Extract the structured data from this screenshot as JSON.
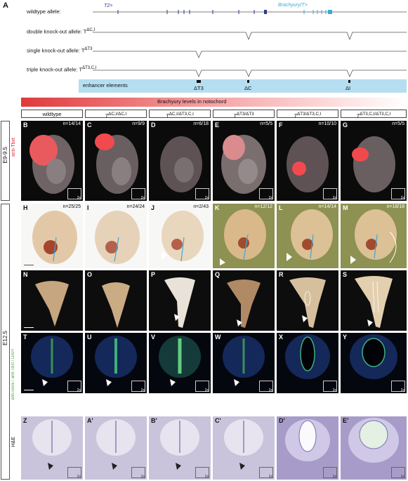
{
  "panel_a": {
    "label": "A",
    "gene_t2": "T2>",
    "gene_brachyury": "Brachyury/T>",
    "alleles": [
      {
        "prefix": "wildtype allele:",
        "sup": ""
      },
      {
        "prefix": "double knock-out allele: T",
        "sup": "ΔC,I"
      },
      {
        "prefix": "single knock-out allele: T",
        "sup": "ΔT3"
      },
      {
        "prefix": "triple knock-out allele: T",
        "sup": "ΔT3,C,I"
      }
    ],
    "enhancer_label": "enhancer elements",
    "enhancers": [
      "ΔT3",
      "ΔC",
      "ΔI"
    ]
  },
  "gradient_label": "Brachyury levels in notochord",
  "genotypes": [
    {
      "text": "wildtype",
      "prefix": ""
    },
    {
      "prefix": "T",
      "sup": "ΔC,I/ΔC,I"
    },
    {
      "prefix": "T",
      "sup": "ΔC,I/ΔT3,C,I"
    },
    {
      "prefix": "T",
      "sup": "ΔT3/ΔT3"
    },
    {
      "prefix": "T",
      "sup": "ΔT3/ΔT3,C,I"
    },
    {
      "prefix": "T",
      "sup": "ΔT3,C,I/ΔT3,C,I"
    }
  ],
  "stages": {
    "e9": "E9-9.5",
    "e12": "E12.5"
  },
  "side_labels": {
    "row1": "anti-Tbxt",
    "row4": "anti-Sox9 / anti-Tbxt / DAPI",
    "row5": "H&E"
  },
  "inset_text": "2x",
  "rows": [
    {
      "cells": [
        {
          "letter": "B",
          "count": "n=14/14"
        },
        {
          "letter": "C",
          "count": "n=9/9"
        },
        {
          "letter": "D",
          "count": "n=6/18"
        },
        {
          "letter": "E",
          "count": "n=5/5"
        },
        {
          "letter": "F",
          "count": "n=10/10"
        },
        {
          "letter": "G",
          "count": "n=5/5"
        }
      ]
    },
    {
      "cells": [
        {
          "letter": "H",
          "count": "n=25/25"
        },
        {
          "letter": "I",
          "count": "n=24/24"
        },
        {
          "letter": "J",
          "count": "n=2/43"
        },
        {
          "letter": "K",
          "count": "n=12/12"
        },
        {
          "letter": "L",
          "count": "n=14/14"
        },
        {
          "letter": "M",
          "count": "n=18/18"
        }
      ]
    },
    {
      "cells": [
        {
          "letter": "N"
        },
        {
          "letter": "O"
        },
        {
          "letter": "P"
        },
        {
          "letter": "Q"
        },
        {
          "letter": "R"
        },
        {
          "letter": "S"
        }
      ]
    },
    {
      "cells": [
        {
          "letter": "T"
        },
        {
          "letter": "U"
        },
        {
          "letter": "V"
        },
        {
          "letter": "W"
        },
        {
          "letter": "X"
        },
        {
          "letter": "Y"
        }
      ]
    },
    {
      "cells": [
        {
          "letter": "Z"
        },
        {
          "letter": "A'"
        },
        {
          "letter": "B'"
        },
        {
          "letter": "C'"
        },
        {
          "letter": "D'"
        },
        {
          "letter": "E'"
        }
      ]
    }
  ],
  "colors": {
    "enhancer_bg": "#b5def1",
    "gradient_start": "#e0393b",
    "t2_gene": "#2b3a8f",
    "brachyury_gene": "#3aa9d8"
  }
}
